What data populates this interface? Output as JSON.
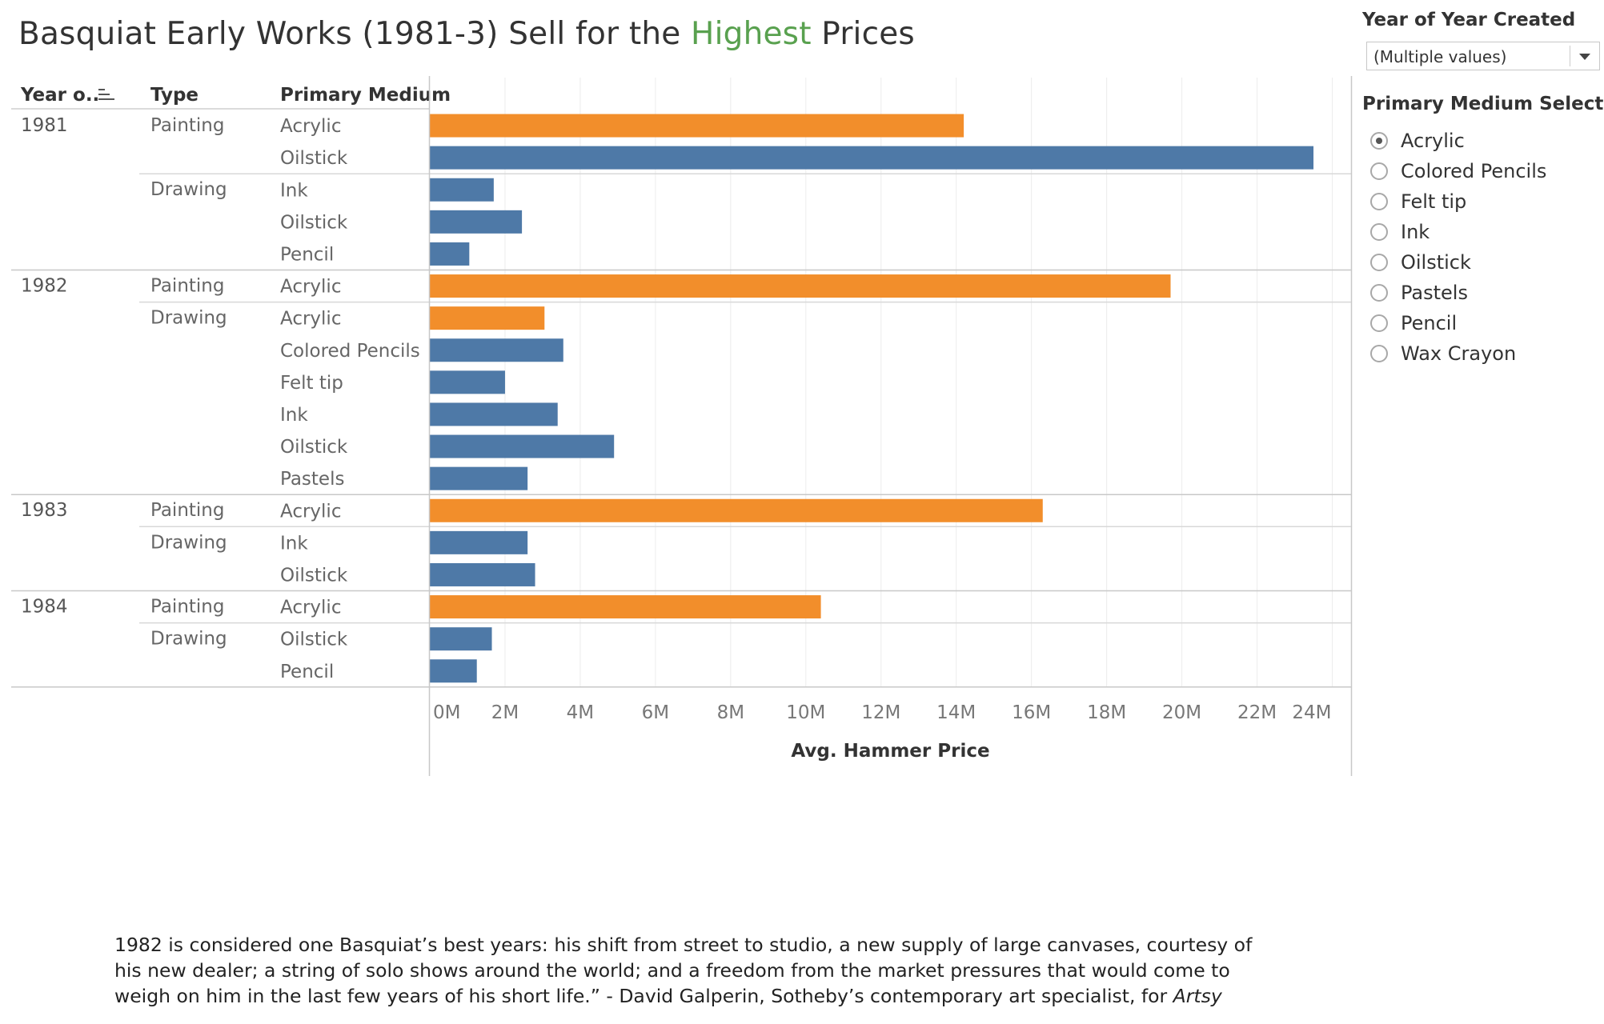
{
  "title": {
    "before": "Basquiat Early Works (1981-3) Sell for the ",
    "highlight": "Highest",
    "after": " Prices"
  },
  "filters": {
    "year_label": "Year of Year Created",
    "year_value": "(Multiple values)",
    "medium_label": "Primary Medium Selector",
    "medium_options": [
      "Acrylic",
      "Colored Pencils",
      "Felt tip",
      "Ink",
      "Oilstick",
      "Pastels",
      "Pencil",
      "Wax Crayon"
    ],
    "medium_selected": "Acrylic"
  },
  "colors": {
    "highlight": "#f28e2b",
    "base": "#4e79a7",
    "title_highlight": "#59a14f"
  },
  "chart_data": {
    "type": "bar",
    "orientation": "horizontal",
    "headers": [
      "Year o..",
      "Type",
      "Primary Medium"
    ],
    "xlabel": "Avg. Hammer Price",
    "xlim": [
      0,
      24500000
    ],
    "xticks": [
      0,
      2000000,
      4000000,
      6000000,
      8000000,
      10000000,
      12000000,
      14000000,
      16000000,
      18000000,
      20000000,
      22000000,
      24000000
    ],
    "xtick_labels": [
      "0M",
      "2M",
      "4M",
      "6M",
      "8M",
      "10M",
      "12M",
      "14M",
      "16M",
      "18M",
      "20M",
      "22M",
      "24M"
    ],
    "rows": [
      {
        "year": "1981",
        "type": "Painting",
        "medium": "Acrylic",
        "value": 14200000
      },
      {
        "year": "1981",
        "type": "Painting",
        "medium": "Oilstick",
        "value": 23500000
      },
      {
        "year": "1981",
        "type": "Drawing",
        "medium": "Ink",
        "value": 1700000
      },
      {
        "year": "1981",
        "type": "Drawing",
        "medium": "Oilstick",
        "value": 2450000
      },
      {
        "year": "1981",
        "type": "Drawing",
        "medium": "Pencil",
        "value": 1050000
      },
      {
        "year": "1982",
        "type": "Painting",
        "medium": "Acrylic",
        "value": 19700000
      },
      {
        "year": "1982",
        "type": "Drawing",
        "medium": "Acrylic",
        "value": 3050000
      },
      {
        "year": "1982",
        "type": "Drawing",
        "medium": "Colored Pencils",
        "value": 3550000
      },
      {
        "year": "1982",
        "type": "Drawing",
        "medium": "Felt tip",
        "value": 2000000
      },
      {
        "year": "1982",
        "type": "Drawing",
        "medium": "Ink",
        "value": 3400000
      },
      {
        "year": "1982",
        "type": "Drawing",
        "medium": "Oilstick",
        "value": 4900000
      },
      {
        "year": "1982",
        "type": "Drawing",
        "medium": "Pastels",
        "value": 2600000
      },
      {
        "year": "1983",
        "type": "Painting",
        "medium": "Acrylic",
        "value": 16300000
      },
      {
        "year": "1983",
        "type": "Drawing",
        "medium": "Ink",
        "value": 2600000
      },
      {
        "year": "1983",
        "type": "Drawing",
        "medium": "Oilstick",
        "value": 2800000
      },
      {
        "year": "1984",
        "type": "Painting",
        "medium": "Acrylic",
        "value": 10400000
      },
      {
        "year": "1984",
        "type": "Drawing",
        "medium": "Oilstick",
        "value": 1650000
      },
      {
        "year": "1984",
        "type": "Drawing",
        "medium": "Pencil",
        "value": 1250000
      }
    ]
  },
  "caption": {
    "lines": [
      "1982 is considered one Basquiat’s best years: his shift from street to studio, a new supply of large canvases, courtesy of",
      "his new dealer; a string of solo shows around the world; and a freedom from the market pressures that would come to",
      "weigh on him in the last few years of his short life.” - David Galperin, Sotheby’s contemporary art specialist, for "
    ],
    "source": "Artsy"
  }
}
